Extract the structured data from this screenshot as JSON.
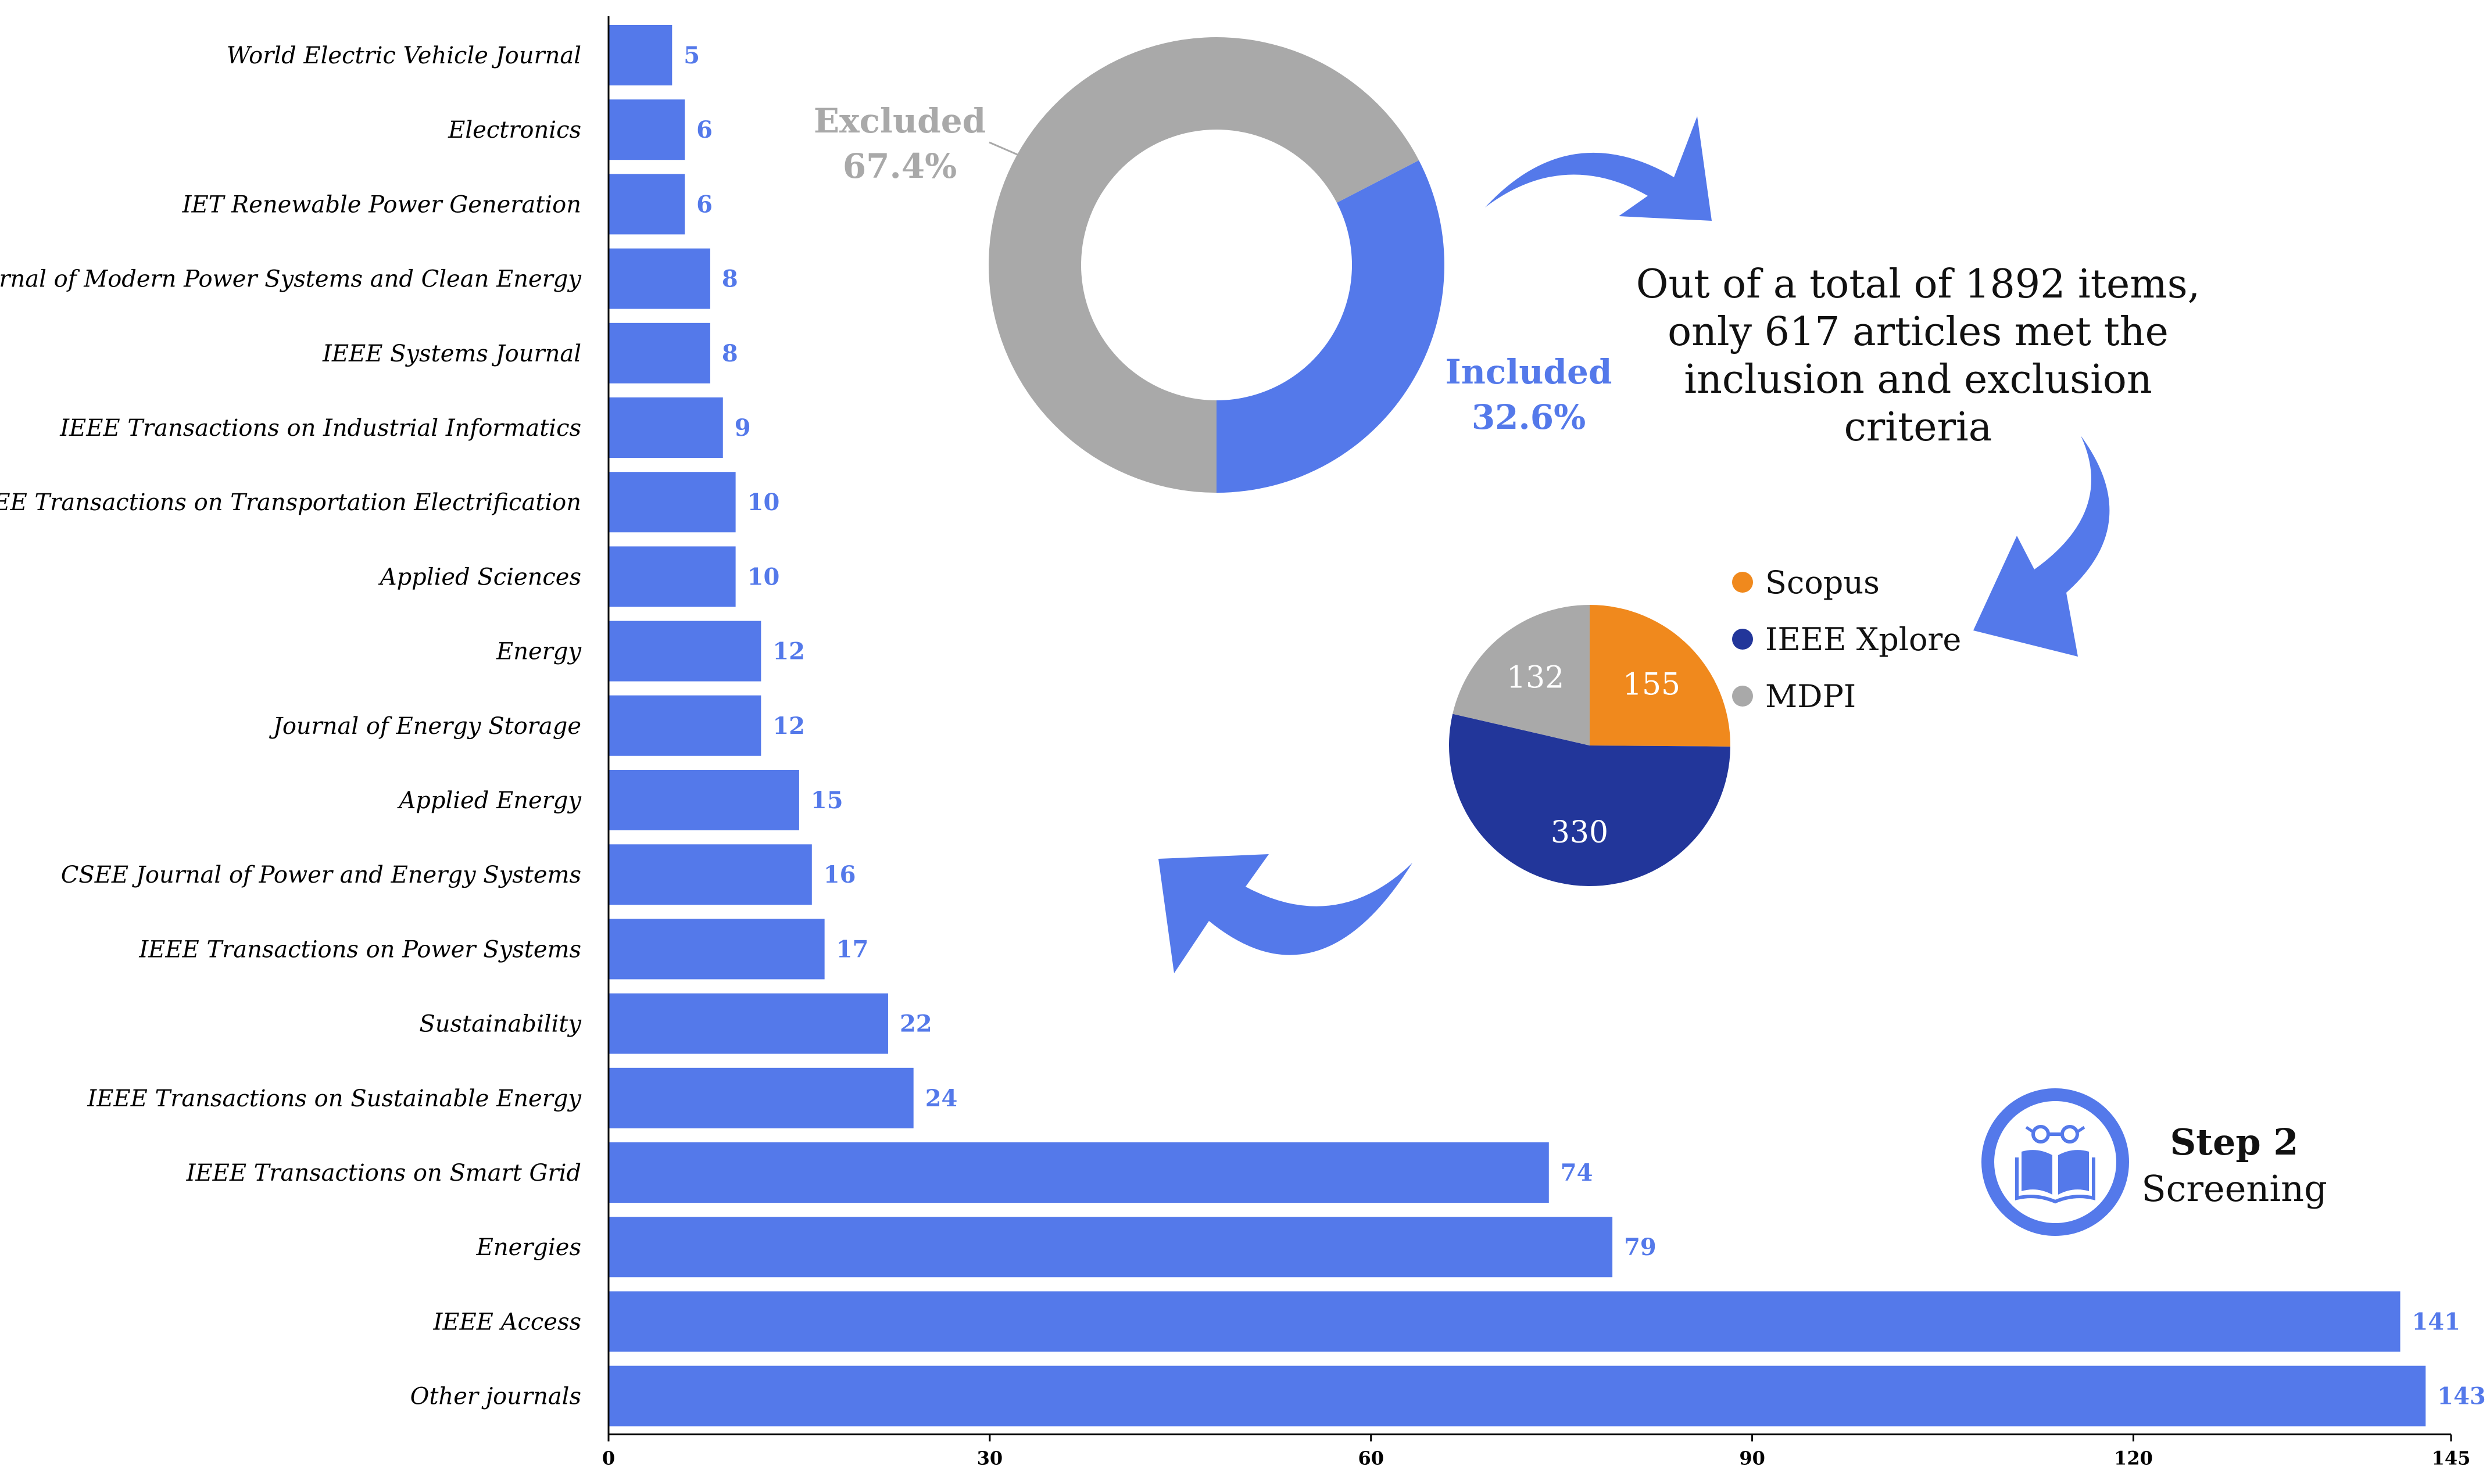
{
  "chart_data": [
    {
      "type": "bar",
      "orientation": "horizontal",
      "categories": [
        "World Electric Vehicle Journal",
        "Electronics",
        "IET Renewable Power Generation",
        "Journal of Modern Power Systems and Clean Energy",
        "IEEE Systems Journal",
        "IEEE Transactions on Industrial Informatics",
        "IEEE Transactions on Transportation Electrification",
        "Applied Sciences",
        "Energy",
        "Journal of Energy Storage",
        "Applied Energy",
        "CSEE Journal of Power and Energy Systems",
        "IEEE Transactions on Power Systems",
        "Sustainability",
        "IEEE Transactions on Sustainable Energy",
        "IEEE Transactions on Smart Grid",
        "Energies",
        "IEEE Access",
        "Other journals"
      ],
      "values": [
        5,
        6,
        6,
        8,
        8,
        9,
        10,
        10,
        12,
        12,
        15,
        16,
        17,
        22,
        24,
        74,
        79,
        141,
        143
      ],
      "xticks": [
        "0",
        "30",
        "60",
        "90",
        "120",
        "145"
      ],
      "xlim": [
        0,
        145
      ],
      "color": "#5479EA"
    },
    {
      "type": "pie",
      "variant": "donut",
      "slices": [
        {
          "label": "Included",
          "percent_text": "32.6%",
          "value": 32.6,
          "color": "#5479EA"
        },
        {
          "label": "Excluded",
          "percent_text": "67.4%",
          "value": 67.4,
          "color": "#A9A9A9"
        }
      ]
    },
    {
      "type": "pie",
      "slices": [
        {
          "label": "Scopus",
          "value": 155,
          "color": "#F0891D"
        },
        {
          "label": "IEEE Xplore",
          "value": 330,
          "color": "#22369A"
        },
        {
          "label": "MDPI",
          "value": 132,
          "color": "#A9A9A9"
        }
      ]
    }
  ],
  "summary": {
    "lines": [
      "Out of a total of 1892 items,",
      "only 617 articles met the",
      "inclusion and exclusion",
      "criteria"
    ]
  },
  "step": {
    "title": "Step 2",
    "subtitle": "Screening",
    "icon": "reader-book-icon"
  },
  "colors": {
    "accent_blue": "#5479EA",
    "gray": "#A9A9A9",
    "orange": "#F0891D",
    "navy": "#22369A"
  }
}
